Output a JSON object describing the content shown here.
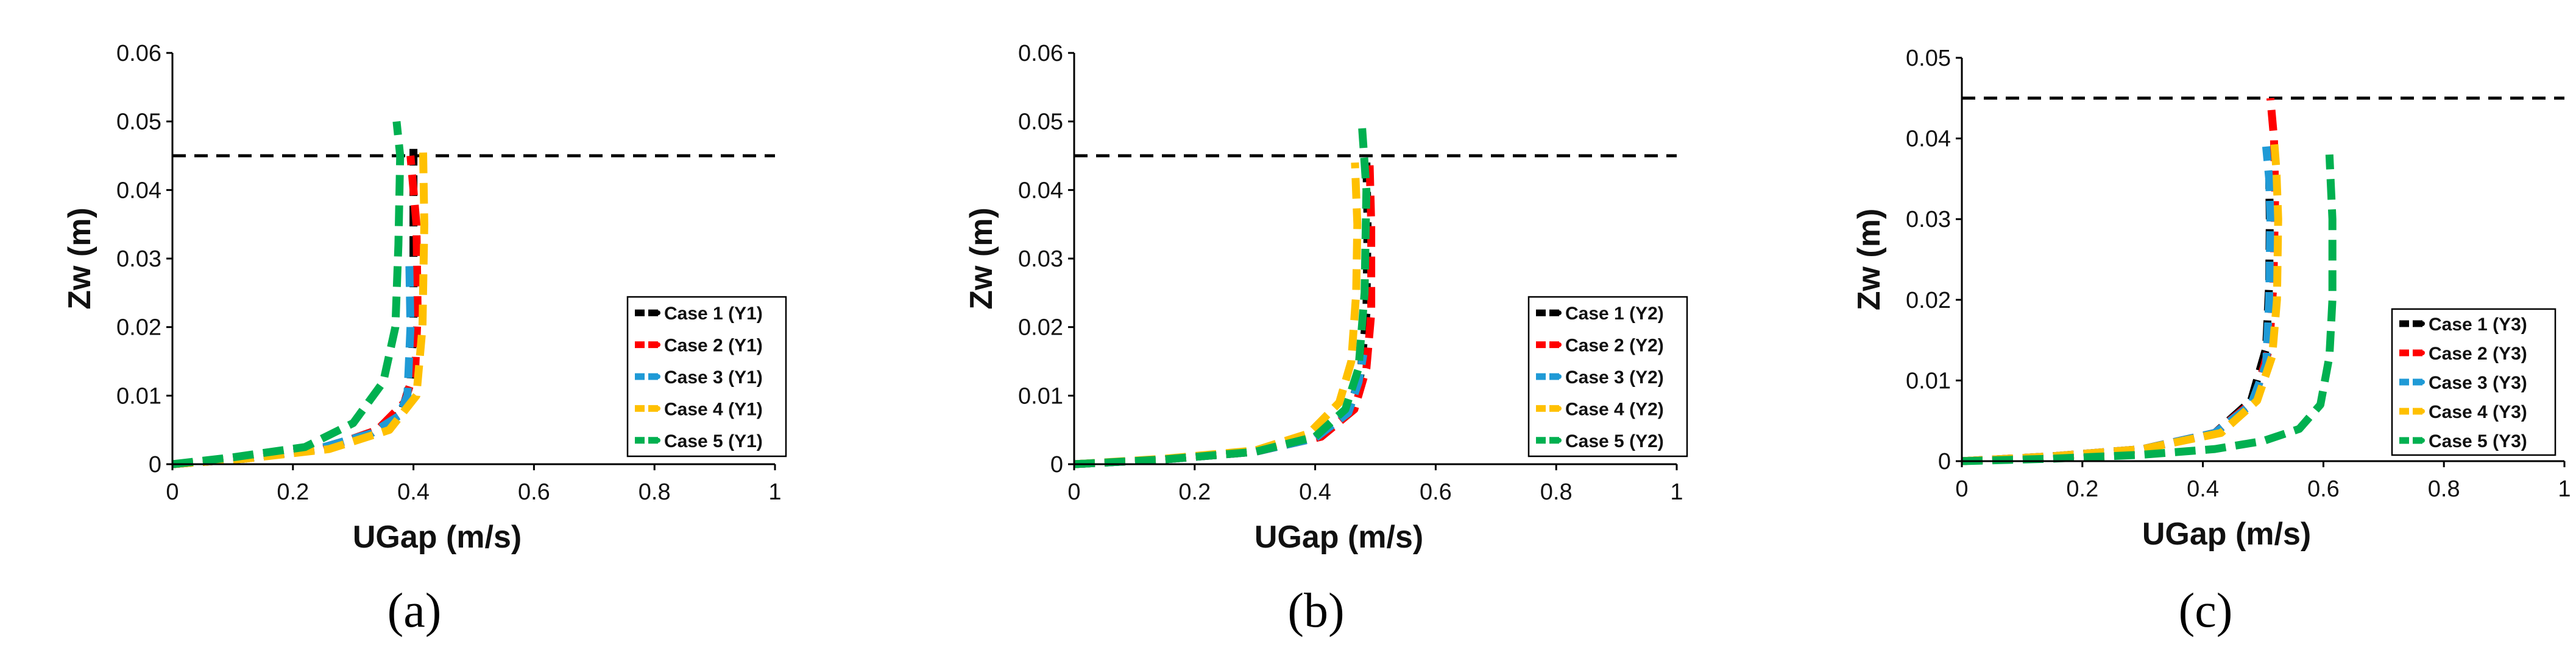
{
  "chart_data": [
    {
      "panel": "(a)",
      "type": "line",
      "xlabel": "UGap (m/s)",
      "ylabel": "Zw (m)",
      "xlim": [
        0,
        1
      ],
      "ylim": [
        0,
        0.06
      ],
      "xticks": [
        0,
        0.2,
        0.4,
        0.6,
        0.8,
        1
      ],
      "yticks": [
        0,
        0.01,
        0.02,
        0.03,
        0.04,
        0.05,
        0.06
      ],
      "xtick_labels": [
        "0",
        "0.2",
        "0.4",
        "0.6",
        "0.8",
        "1"
      ],
      "ytick_labels": [
        "0",
        "0.01",
        "0.02",
        "0.03",
        "0.04",
        "0.05",
        "0.06"
      ],
      "reference_line": {
        "y": 0.045,
        "x": [
          0,
          1
        ]
      },
      "legend_position": "lower-right",
      "series": [
        {
          "name": "Case 1 (Y1)",
          "color": "#000000",
          "x": [
            0.0,
            0.12,
            0.24,
            0.33,
            0.38,
            0.395,
            0.4,
            0.4,
            0.4
          ],
          "y": [
            0.0,
            0.0008,
            0.0022,
            0.0045,
            0.0075,
            0.012,
            0.02,
            0.035,
            0.046
          ]
        },
        {
          "name": "Case 2 (Y1)",
          "color": "#ff0000",
          "x": [
            0.0,
            0.12,
            0.25,
            0.34,
            0.385,
            0.403,
            0.407,
            0.405,
            0.395
          ],
          "y": [
            0.0,
            0.0008,
            0.0022,
            0.005,
            0.009,
            0.014,
            0.022,
            0.035,
            0.045
          ]
        },
        {
          "name": "Case 3 (Y1)",
          "color": "#1f9ad6",
          "x": [
            0.0,
            0.12,
            0.24,
            0.33,
            0.375,
            0.39,
            0.395,
            0.393
          ],
          "y": [
            0.0,
            0.0008,
            0.0022,
            0.0045,
            0.007,
            0.01,
            0.02,
            0.03
          ]
        },
        {
          "name": "Case 4 (Y1)",
          "color": "#ffc000",
          "x": [
            0.0,
            0.12,
            0.26,
            0.36,
            0.405,
            0.415,
            0.418,
            0.416
          ],
          "y": [
            0.0,
            0.0008,
            0.0022,
            0.005,
            0.01,
            0.02,
            0.035,
            0.046
          ]
        },
        {
          "name": "Case 5 (Y1)",
          "color": "#00b050",
          "x": [
            0.0,
            0.1,
            0.22,
            0.3,
            0.35,
            0.37,
            0.375,
            0.378,
            0.372
          ],
          "y": [
            0.0,
            0.001,
            0.0025,
            0.006,
            0.012,
            0.02,
            0.032,
            0.045,
            0.05
          ]
        }
      ]
    },
    {
      "panel": "(b)",
      "type": "line",
      "xlabel": "UGap (m/s)",
      "ylabel": "Zw (m)",
      "xlim": [
        0,
        1
      ],
      "ylim": [
        0,
        0.06
      ],
      "xticks": [
        0,
        0.2,
        0.4,
        0.6,
        0.8,
        1
      ],
      "yticks": [
        0,
        0.01,
        0.02,
        0.03,
        0.04,
        0.05,
        0.06
      ],
      "xtick_labels": [
        "0",
        "0.2",
        "0.4",
        "0.6",
        "0.8",
        "1"
      ],
      "ytick_labels": [
        "0",
        "0.01",
        "0.02",
        "0.03",
        "0.04",
        "0.05",
        "0.06"
      ],
      "reference_line": {
        "y": 0.045,
        "x": [
          0,
          1
        ]
      },
      "legend_position": "lower-right",
      "series": [
        {
          "name": "Case 1 (Y2)",
          "color": "#000000",
          "x": [
            0.0,
            0.15,
            0.3,
            0.4,
            0.455,
            0.475,
            0.485,
            0.487,
            0.485
          ],
          "y": [
            0.0,
            0.0007,
            0.0018,
            0.0038,
            0.0075,
            0.013,
            0.022,
            0.035,
            0.044
          ]
        },
        {
          "name": "Case 2 (Y2)",
          "color": "#ff0000",
          "x": [
            0.0,
            0.15,
            0.3,
            0.41,
            0.465,
            0.485,
            0.493,
            0.493,
            0.49
          ],
          "y": [
            0.0,
            0.0007,
            0.0018,
            0.004,
            0.008,
            0.014,
            0.022,
            0.035,
            0.045
          ]
        },
        {
          "name": "Case 3 (Y2)",
          "color": "#1f9ad6",
          "x": [
            0.0,
            0.15,
            0.3,
            0.4,
            0.455,
            0.472,
            0.48
          ],
          "y": [
            0.0,
            0.0007,
            0.0018,
            0.0038,
            0.0075,
            0.012,
            0.016
          ]
        },
        {
          "name": "Case 4 (Y2)",
          "color": "#ffc000",
          "x": [
            0.0,
            0.15,
            0.3,
            0.39,
            0.44,
            0.46,
            0.468,
            0.47,
            0.466
          ],
          "y": [
            0.0,
            0.0008,
            0.002,
            0.0045,
            0.009,
            0.015,
            0.025,
            0.035,
            0.044
          ]
        },
        {
          "name": "Case 5 (Y2)",
          "color": "#00b050",
          "x": [
            0.0,
            0.15,
            0.3,
            0.4,
            0.45,
            0.472,
            0.482,
            0.485,
            0.478
          ],
          "y": [
            0.0,
            0.0007,
            0.0018,
            0.004,
            0.008,
            0.014,
            0.025,
            0.04,
            0.049
          ]
        }
      ]
    },
    {
      "panel": "(c)",
      "type": "line",
      "xlabel": "UGap (m/s)",
      "ylabel": "Zw (m)",
      "xlim": [
        0,
        1
      ],
      "ylim": [
        0,
        0.05
      ],
      "xticks": [
        0,
        0.2,
        0.4,
        0.6,
        0.8,
        1
      ],
      "yticks": [
        0,
        0.01,
        0.02,
        0.03,
        0.04,
        0.05
      ],
      "xtick_labels": [
        "0",
        "0.2",
        "0.4",
        "0.6",
        "0.8",
        "1"
      ],
      "ytick_labels": [
        "0",
        "0.01",
        "0.02",
        "0.03",
        "0.04",
        "0.05"
      ],
      "reference_line": {
        "y": 0.045,
        "x": [
          0,
          1
        ]
      },
      "legend_position": "lower-right",
      "series": [
        {
          "name": "Case 1 (Y3)",
          "color": "#000000",
          "x": [
            0.0,
            0.15,
            0.3,
            0.42,
            0.48,
            0.505,
            0.51,
            0.511,
            0.51
          ],
          "y": [
            0.0,
            0.0006,
            0.0015,
            0.0035,
            0.0075,
            0.014,
            0.022,
            0.03,
            0.035
          ]
        },
        {
          "name": "Case 2 (Y3)",
          "color": "#ff0000",
          "x": [
            0.0,
            0.15,
            0.3,
            0.42,
            0.485,
            0.51,
            0.517,
            0.52,
            0.518,
            0.512
          ],
          "y": [
            0.0,
            0.0006,
            0.0015,
            0.0035,
            0.0075,
            0.014,
            0.022,
            0.033,
            0.04,
            0.045
          ]
        },
        {
          "name": "Case 3 (Y3)",
          "color": "#1f9ad6",
          "x": [
            0.0,
            0.15,
            0.3,
            0.42,
            0.48,
            0.505,
            0.51,
            0.512,
            0.51,
            0.505
          ],
          "y": [
            0.0,
            0.0006,
            0.0015,
            0.0035,
            0.007,
            0.012,
            0.02,
            0.03,
            0.035,
            0.039
          ]
        },
        {
          "name": "Case 4 (Y3)",
          "color": "#ffc000",
          "x": [
            0.0,
            0.15,
            0.3,
            0.43,
            0.49,
            0.515,
            0.523,
            0.525,
            0.522,
            0.518
          ],
          "y": [
            0.0,
            0.0006,
            0.0015,
            0.0035,
            0.0075,
            0.013,
            0.02,
            0.03,
            0.036,
            0.04
          ]
        },
        {
          "name": "Case 5 (Y3)",
          "color": "#00b050",
          "x": [
            0.0,
            0.15,
            0.3,
            0.42,
            0.5,
            0.56,
            0.595,
            0.61,
            0.615,
            0.615,
            0.61
          ],
          "y": [
            0.0,
            0.0003,
            0.0008,
            0.0015,
            0.0025,
            0.004,
            0.007,
            0.013,
            0.02,
            0.03,
            0.038
          ]
        }
      ]
    }
  ]
}
